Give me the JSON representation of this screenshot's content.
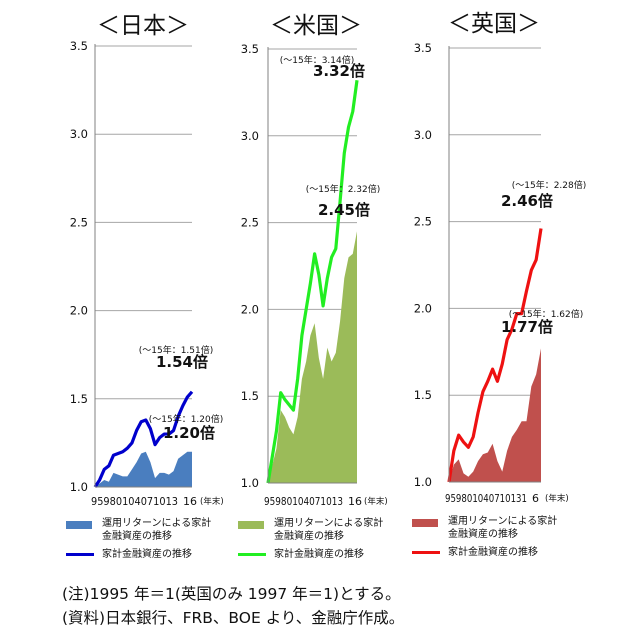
{
  "chart_data": [
    {
      "type": "area+line",
      "title": "＜日本＞",
      "ylim": [
        1.0,
        3.5
      ],
      "yticks": [
        "1.0",
        "1.5",
        "2.0",
        "2.5",
        "3.0",
        "3.5"
      ],
      "xtick_text": "95980104071013",
      "xtick_last": "16",
      "xunit": "(年末)",
      "x": [
        1995,
        1996,
        1997,
        1998,
        1999,
        2000,
        2001,
        2002,
        2003,
        2004,
        2005,
        2006,
        2007,
        2008,
        2009,
        2010,
        2011,
        2012,
        2013,
        2014,
        2015,
        2016
      ],
      "series": [
        {
          "kind": "area",
          "values": [
            1.0,
            1.02,
            1.04,
            1.03,
            1.08,
            1.07,
            1.06,
            1.06,
            1.1,
            1.14,
            1.19,
            1.2,
            1.14,
            1.05,
            1.08,
            1.08,
            1.07,
            1.09,
            1.16,
            1.18,
            1.2,
            1.2
          ]
        },
        {
          "kind": "line",
          "values": [
            1.0,
            1.04,
            1.1,
            1.12,
            1.18,
            1.19,
            1.2,
            1.22,
            1.25,
            1.32,
            1.37,
            1.38,
            1.33,
            1.24,
            1.28,
            1.3,
            1.3,
            1.32,
            1.4,
            1.46,
            1.51,
            1.54
          ]
        }
      ],
      "annotations": [
        {
          "small": "(～15年：1.51倍)",
          "big": "1.54倍",
          "ref": "line"
        },
        {
          "small": "(～15年：1.20倍)",
          "big": "1.20倍",
          "ref": "area"
        }
      ]
    },
    {
      "type": "area+line",
      "title": "＜米国＞",
      "ylim": [
        1.0,
        3.5
      ],
      "yticks": [
        "1.0",
        "1.5",
        "2.0",
        "2.5",
        "3.0",
        "3.5"
      ],
      "xtick_text": "95980104071013",
      "xtick_last": "16",
      "xunit": "(年末)",
      "x": [
        1995,
        1996,
        1997,
        1998,
        1999,
        2000,
        2001,
        2002,
        2003,
        2004,
        2005,
        2006,
        2007,
        2008,
        2009,
        2010,
        2011,
        2012,
        2013,
        2014,
        2015,
        2016
      ],
      "series": [
        {
          "kind": "area",
          "values": [
            1.0,
            1.1,
            1.2,
            1.42,
            1.38,
            1.32,
            1.28,
            1.38,
            1.6,
            1.7,
            1.85,
            1.92,
            1.72,
            1.6,
            1.78,
            1.7,
            1.75,
            1.93,
            2.18,
            2.3,
            2.32,
            2.45
          ]
        },
        {
          "kind": "line",
          "values": [
            1.0,
            1.15,
            1.3,
            1.52,
            1.48,
            1.45,
            1.42,
            1.6,
            1.85,
            2.0,
            2.15,
            2.32,
            2.2,
            2.02,
            2.18,
            2.3,
            2.35,
            2.62,
            2.9,
            3.05,
            3.14,
            3.32
          ]
        }
      ],
      "annotations": [
        {
          "small": "(～15年：3.14倍)",
          "big": "3.32倍",
          "ref": "line"
        },
        {
          "small": "(～15年：2.32倍)",
          "big": "2.45倍",
          "ref": "area"
        }
      ]
    },
    {
      "type": "area+line",
      "title": "＜英国＞",
      "ylim": [
        1.0,
        3.5
      ],
      "yticks": [
        "1.0",
        "1.5",
        "2.0",
        "2.5",
        "3.0",
        "3.5"
      ],
      "xtick_text": "959801040710131",
      "xtick_last": "6",
      "xunit": "(年末)",
      "x": [
        1997,
        1998,
        1999,
        2000,
        2001,
        2002,
        2003,
        2004,
        2005,
        2006,
        2007,
        2008,
        2009,
        2010,
        2011,
        2012,
        2013,
        2014,
        2015,
        2016
      ],
      "series": [
        {
          "kind": "area",
          "values": [
            1.0,
            1.1,
            1.13,
            1.05,
            1.03,
            1.06,
            1.12,
            1.16,
            1.17,
            1.22,
            1.12,
            1.06,
            1.18,
            1.26,
            1.3,
            1.35,
            1.35,
            1.55,
            1.62,
            1.77
          ]
        },
        {
          "kind": "line",
          "values": [
            1.0,
            1.18,
            1.27,
            1.23,
            1.2,
            1.26,
            1.4,
            1.52,
            1.58,
            1.65,
            1.58,
            1.68,
            1.82,
            1.88,
            1.97,
            1.97,
            2.1,
            2.22,
            2.28,
            2.46
          ]
        }
      ],
      "annotations": [
        {
          "small": "(～15年：2.28倍)",
          "big": "2.46倍",
          "ref": "line"
        },
        {
          "small": "(～15年：1.62倍)",
          "big": "1.77倍",
          "ref": "area"
        }
      ]
    }
  ],
  "legends": [
    {
      "area_label_1": "運用リターンによる家計",
      "area_label_2": "金融資産の推移",
      "line_label": "家計金融資産の推移",
      "area_color": "#4a7ebf",
      "line_color": "#0000cc"
    },
    {
      "area_label_1": "運用リターンによる家計",
      "area_label_2": "金融資産の推移",
      "line_label": "家計金融資産の推移",
      "area_color": "#9bbb59",
      "line_color": "#22ee22"
    },
    {
      "area_label_1": "運用リターンによる家計",
      "area_label_2": "金融資産の推移",
      "line_label": "家計金融資産の推移",
      "area_color": "#c0504d",
      "line_color": "#ee1111"
    }
  ],
  "notes": {
    "note1": "(注)1995 年＝1(英国のみ 1997 年＝1)とする。",
    "note2": "(資料)日本銀行、FRB、BOE より、金融庁作成。"
  }
}
